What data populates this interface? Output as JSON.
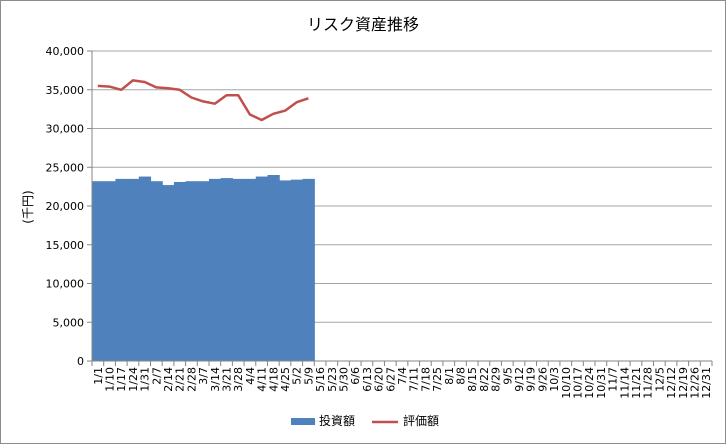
{
  "chart_data": {
    "type": "bar",
    "title": "リスク資産推移",
    "xlabel": "",
    "ylabel": "(千円)",
    "ylim": [
      0,
      40000
    ],
    "yticks": [
      0,
      5000,
      10000,
      15000,
      20000,
      25000,
      30000,
      35000,
      40000
    ],
    "ytick_labels": [
      "0",
      "5,000",
      "10,000",
      "15,000",
      "20,000",
      "25,000",
      "30,000",
      "35,000",
      "40,000"
    ],
    "grid": true,
    "legend_position": "bottom",
    "categories": [
      "1/1",
      "1/10",
      "1/17",
      "1/24",
      "1/31",
      "2/7",
      "2/14",
      "2/21",
      "2/28",
      "3/7",
      "3/14",
      "3/21",
      "3/28",
      "4/4",
      "4/11",
      "4/18",
      "4/25",
      "5/2",
      "5/9",
      "5/16",
      "5/23",
      "5/30",
      "6/6",
      "6/13",
      "6/20",
      "6/27",
      "7/4",
      "7/11",
      "7/18",
      "7/25",
      "8/1",
      "8/8",
      "8/15",
      "8/22",
      "8/29",
      "9/5",
      "9/12",
      "9/19",
      "9/26",
      "10/3",
      "10/10",
      "10/17",
      "10/24",
      "10/31",
      "11/7",
      "11/14",
      "11/21",
      "11/28",
      "12/5",
      "12/12",
      "12/19",
      "12/26",
      "12/31"
    ],
    "series": [
      {
        "name": "投資額",
        "kind": "bar",
        "color": "#4f81bd",
        "values": [
          23200,
          23200,
          23500,
          23500,
          23800,
          23200,
          22700,
          23100,
          23200,
          23200,
          23500,
          23600,
          23500,
          23500,
          23800,
          24000,
          23300,
          23400,
          23500,
          null,
          null,
          null,
          null,
          null,
          null,
          null,
          null,
          null,
          null,
          null,
          null,
          null,
          null,
          null,
          null,
          null,
          null,
          null,
          null,
          null,
          null,
          null,
          null,
          null,
          null,
          null,
          null,
          null,
          null,
          null,
          null,
          null,
          null
        ]
      },
      {
        "name": "評価額",
        "kind": "line",
        "color": "#c0504d",
        "values": [
          35500,
          35400,
          35000,
          36200,
          36000,
          35300,
          35200,
          35000,
          34000,
          33500,
          33200,
          34300,
          34300,
          31800,
          31100,
          31900,
          32300,
          33400,
          33900,
          null,
          null,
          null,
          null,
          null,
          null,
          null,
          null,
          null,
          null,
          null,
          null,
          null,
          null,
          null,
          null,
          null,
          null,
          null,
          null,
          null,
          null,
          null,
          null,
          null,
          null,
          null,
          null,
          null,
          null,
          null,
          null,
          null,
          null
        ]
      }
    ]
  }
}
